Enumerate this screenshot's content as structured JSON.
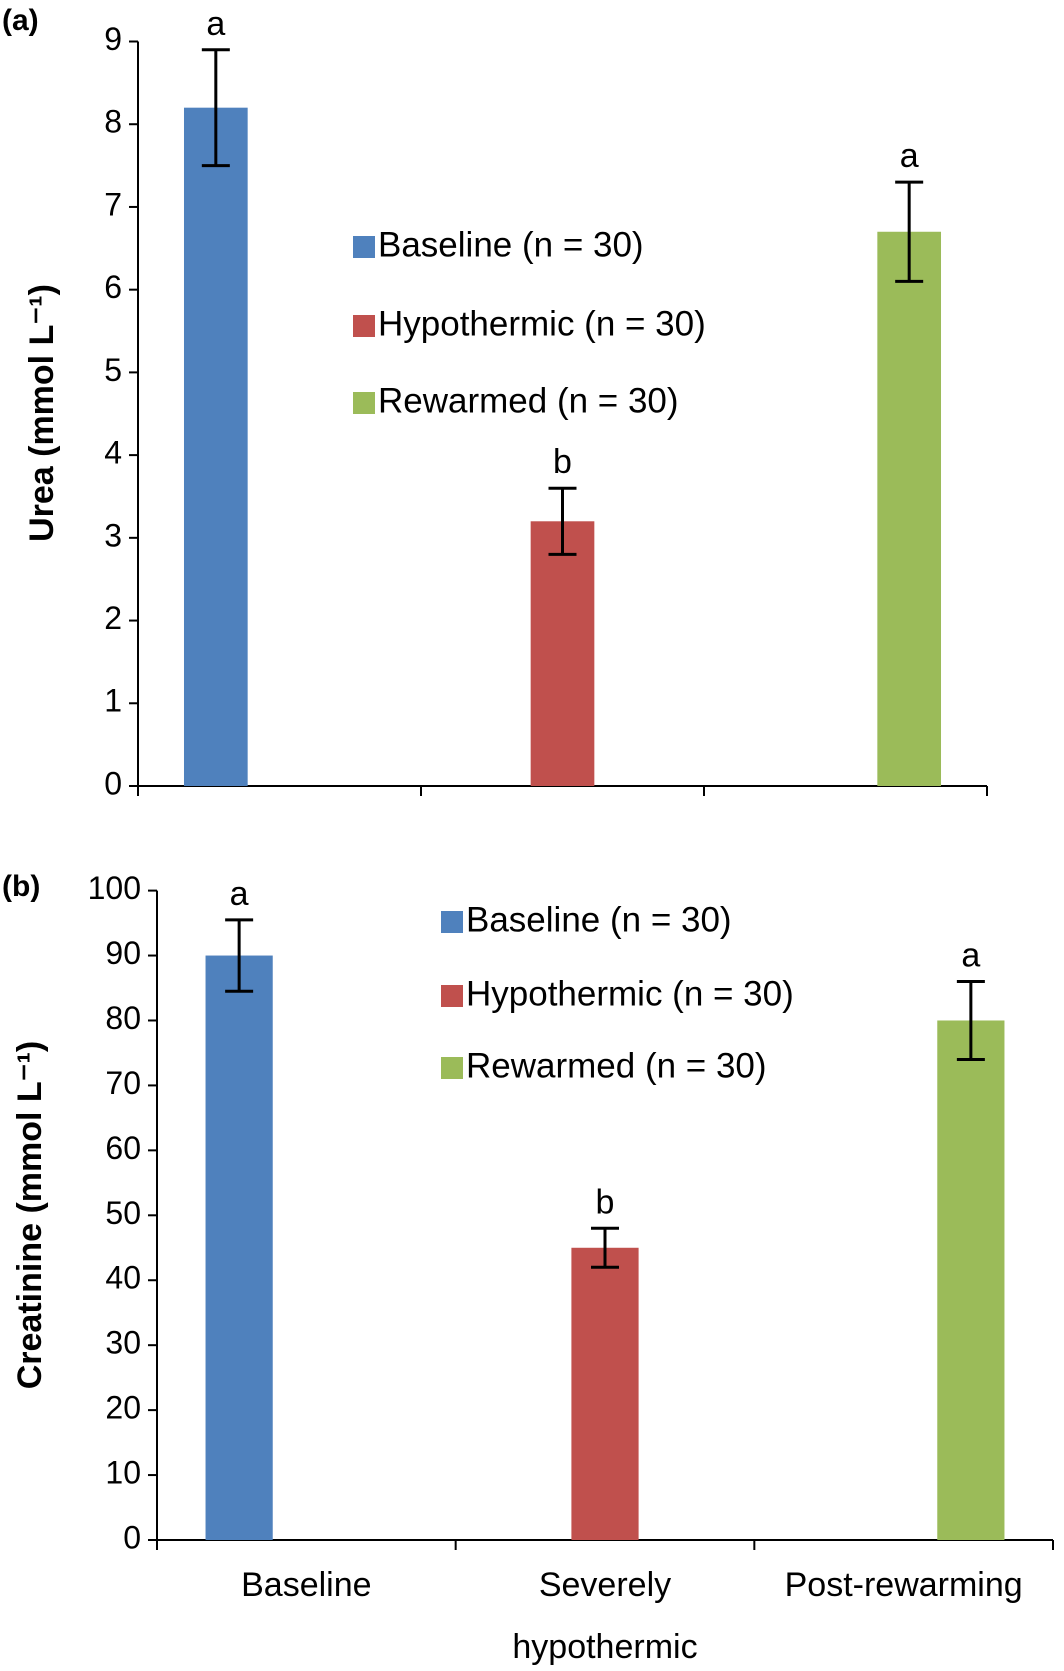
{
  "chart_data": [
    {
      "type": "bar",
      "panel_label": "(a)",
      "y_label": "Urea (mmol L⁻¹)",
      "categories": [
        null,
        null,
        null
      ],
      "series": [
        {
          "name": "Baseline (n = 30)",
          "color": "#4f81bd",
          "values": [
            8.2,
            null,
            null
          ],
          "errors": [
            0.7,
            null,
            null
          ]
        },
        {
          "name": "Hypothermic (n = 30)",
          "color": "#c0504d",
          "values": [
            null,
            3.2,
            null
          ],
          "errors": [
            null,
            0.4,
            null
          ]
        },
        {
          "name": "Rewarmed (n = 30)",
          "color": "#9bbb59",
          "values": [
            null,
            null,
            6.7
          ],
          "errors": [
            null,
            null,
            0.6
          ]
        }
      ],
      "annotations": [
        "a",
        "b",
        "a"
      ],
      "ylim": [
        0,
        9
      ],
      "yticks": [
        0,
        1,
        2,
        3,
        4,
        5,
        6,
        7,
        8,
        9
      ]
    },
    {
      "type": "bar",
      "panel_label": "(b)",
      "y_label": "Creatinine (mmol L⁻¹)",
      "categories": [
        "Baseline",
        "Severely hypothermic",
        "Post-rewarming"
      ],
      "series": [
        {
          "name": "Baseline (n = 30)",
          "color": "#4f81bd",
          "values": [
            90,
            null,
            null
          ],
          "errors": [
            5.5,
            null,
            null
          ]
        },
        {
          "name": "Hypothermic (n = 30)",
          "color": "#c0504d",
          "values": [
            null,
            45,
            null
          ],
          "errors": [
            null,
            3,
            null
          ]
        },
        {
          "name": "Rewarmed (n = 30)",
          "color": "#9bbb59",
          "values": [
            null,
            null,
            80
          ],
          "errors": [
            null,
            null,
            6
          ]
        }
      ],
      "annotations": [
        "a",
        "b",
        "a"
      ],
      "ylim": [
        0,
        100
      ],
      "yticks": [
        0,
        10,
        20,
        30,
        40,
        50,
        60,
        70,
        80,
        90,
        100
      ]
    }
  ]
}
